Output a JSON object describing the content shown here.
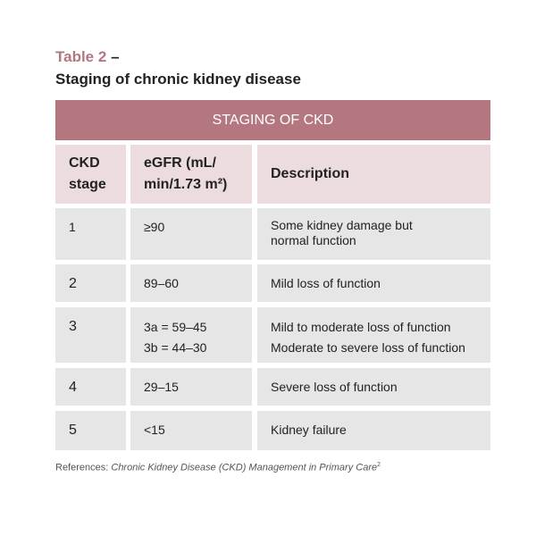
{
  "caption": {
    "label": "Table 2",
    "separator": "–",
    "title": "Staging of chronic kidney disease"
  },
  "table": {
    "banner": "STAGING OF CKD",
    "headers": [
      [
        "CKD",
        "stage"
      ],
      [
        "eGFR (mL/",
        "min/1.73 m²)"
      ],
      [
        "Description"
      ]
    ],
    "rows": [
      [
        [
          "1"
        ],
        [
          "≥90"
        ],
        [
          "Some kidney damage but",
          "normal function"
        ]
      ],
      [
        [
          "2"
        ],
        [
          "89–60"
        ],
        [
          "Mild loss of function"
        ]
      ],
      [
        [
          "3"
        ],
        [
          "3a = 59–45",
          "3b = 44–30"
        ],
        [
          "Mild to moderate loss of function",
          "Moderate to severe loss of function"
        ]
      ],
      [
        [
          "4"
        ],
        [
          "29–15"
        ],
        [
          "Severe loss of function"
        ]
      ],
      [
        [
          "5"
        ],
        [
          "<15"
        ],
        [
          "Kidney failure"
        ]
      ]
    ]
  },
  "footer": {
    "prefix": "References:",
    "source": "Chronic Kidney Disease (CKD) Management in Primary Care",
    "note": "2"
  }
}
